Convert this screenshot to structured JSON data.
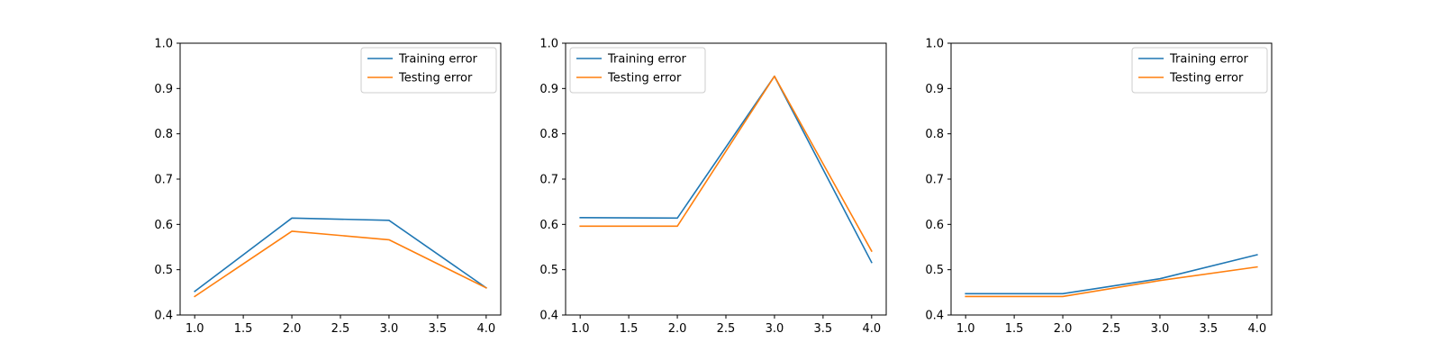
{
  "chart_data": [
    {
      "type": "line",
      "title": "",
      "xlabel": "",
      "ylabel": "",
      "xlim": [
        0.85,
        4.15
      ],
      "ylim": [
        0.4,
        1.0
      ],
      "xticks": [
        1.0,
        1.5,
        2.0,
        2.5,
        3.0,
        3.5,
        4.0
      ],
      "xtick_labels": [
        "1.0",
        "1.5",
        "2.0",
        "2.5",
        "3.0",
        "3.5",
        "4.0"
      ],
      "yticks": [
        0.4,
        0.5,
        0.6,
        0.7,
        0.8,
        0.9,
        1.0
      ],
      "ytick_labels": [
        "0.4",
        "0.5",
        "0.6",
        "0.7",
        "0.8",
        "0.9",
        "1.0"
      ],
      "grid": false,
      "legend": "top-right",
      "x": [
        1,
        2,
        3,
        4
      ],
      "series": [
        {
          "name": "Training error",
          "color": "#1f77b4",
          "values": [
            0.452,
            0.614,
            0.609,
            0.46
          ]
        },
        {
          "name": "Testing error",
          "color": "#ff7f0e",
          "values": [
            0.441,
            0.585,
            0.566,
            0.46
          ]
        }
      ]
    },
    {
      "type": "line",
      "title": "",
      "xlabel": "",
      "ylabel": "",
      "xlim": [
        0.85,
        4.15
      ],
      "ylim": [
        0.4,
        1.0
      ],
      "xticks": [
        1.0,
        1.5,
        2.0,
        2.5,
        3.0,
        3.5,
        4.0
      ],
      "xtick_labels": [
        "1.0",
        "1.5",
        "2.0",
        "2.5",
        "3.0",
        "3.5",
        "4.0"
      ],
      "yticks": [
        0.4,
        0.5,
        0.6,
        0.7,
        0.8,
        0.9,
        1.0
      ],
      "ytick_labels": [
        "0.4",
        "0.5",
        "0.6",
        "0.7",
        "0.8",
        "0.9",
        "1.0"
      ],
      "grid": false,
      "legend": "top-left",
      "x": [
        1,
        2,
        3,
        4
      ],
      "series": [
        {
          "name": "Training error",
          "color": "#1f77b4",
          "values": [
            0.615,
            0.614,
            0.927,
            0.516
          ]
        },
        {
          "name": "Testing error",
          "color": "#ff7f0e",
          "values": [
            0.596,
            0.596,
            0.927,
            0.541
          ]
        }
      ]
    },
    {
      "type": "line",
      "title": "",
      "xlabel": "",
      "ylabel": "",
      "xlim": [
        0.85,
        4.15
      ],
      "ylim": [
        0.4,
        1.0
      ],
      "xticks": [
        1.0,
        1.5,
        2.0,
        2.5,
        3.0,
        3.5,
        4.0
      ],
      "xtick_labels": [
        "1.0",
        "1.5",
        "2.0",
        "2.5",
        "3.0",
        "3.5",
        "4.0"
      ],
      "yticks": [
        0.4,
        0.5,
        0.6,
        0.7,
        0.8,
        0.9,
        1.0
      ],
      "ytick_labels": [
        "0.4",
        "0.5",
        "0.6",
        "0.7",
        "0.8",
        "0.9",
        "1.0"
      ],
      "grid": false,
      "legend": "top-right",
      "x": [
        1,
        2,
        3,
        4
      ],
      "series": [
        {
          "name": "Training error",
          "color": "#1f77b4",
          "values": [
            0.447,
            0.447,
            0.48,
            0.533
          ]
        },
        {
          "name": "Testing error",
          "color": "#ff7f0e",
          "values": [
            0.441,
            0.441,
            0.476,
            0.506
          ]
        }
      ]
    }
  ]
}
